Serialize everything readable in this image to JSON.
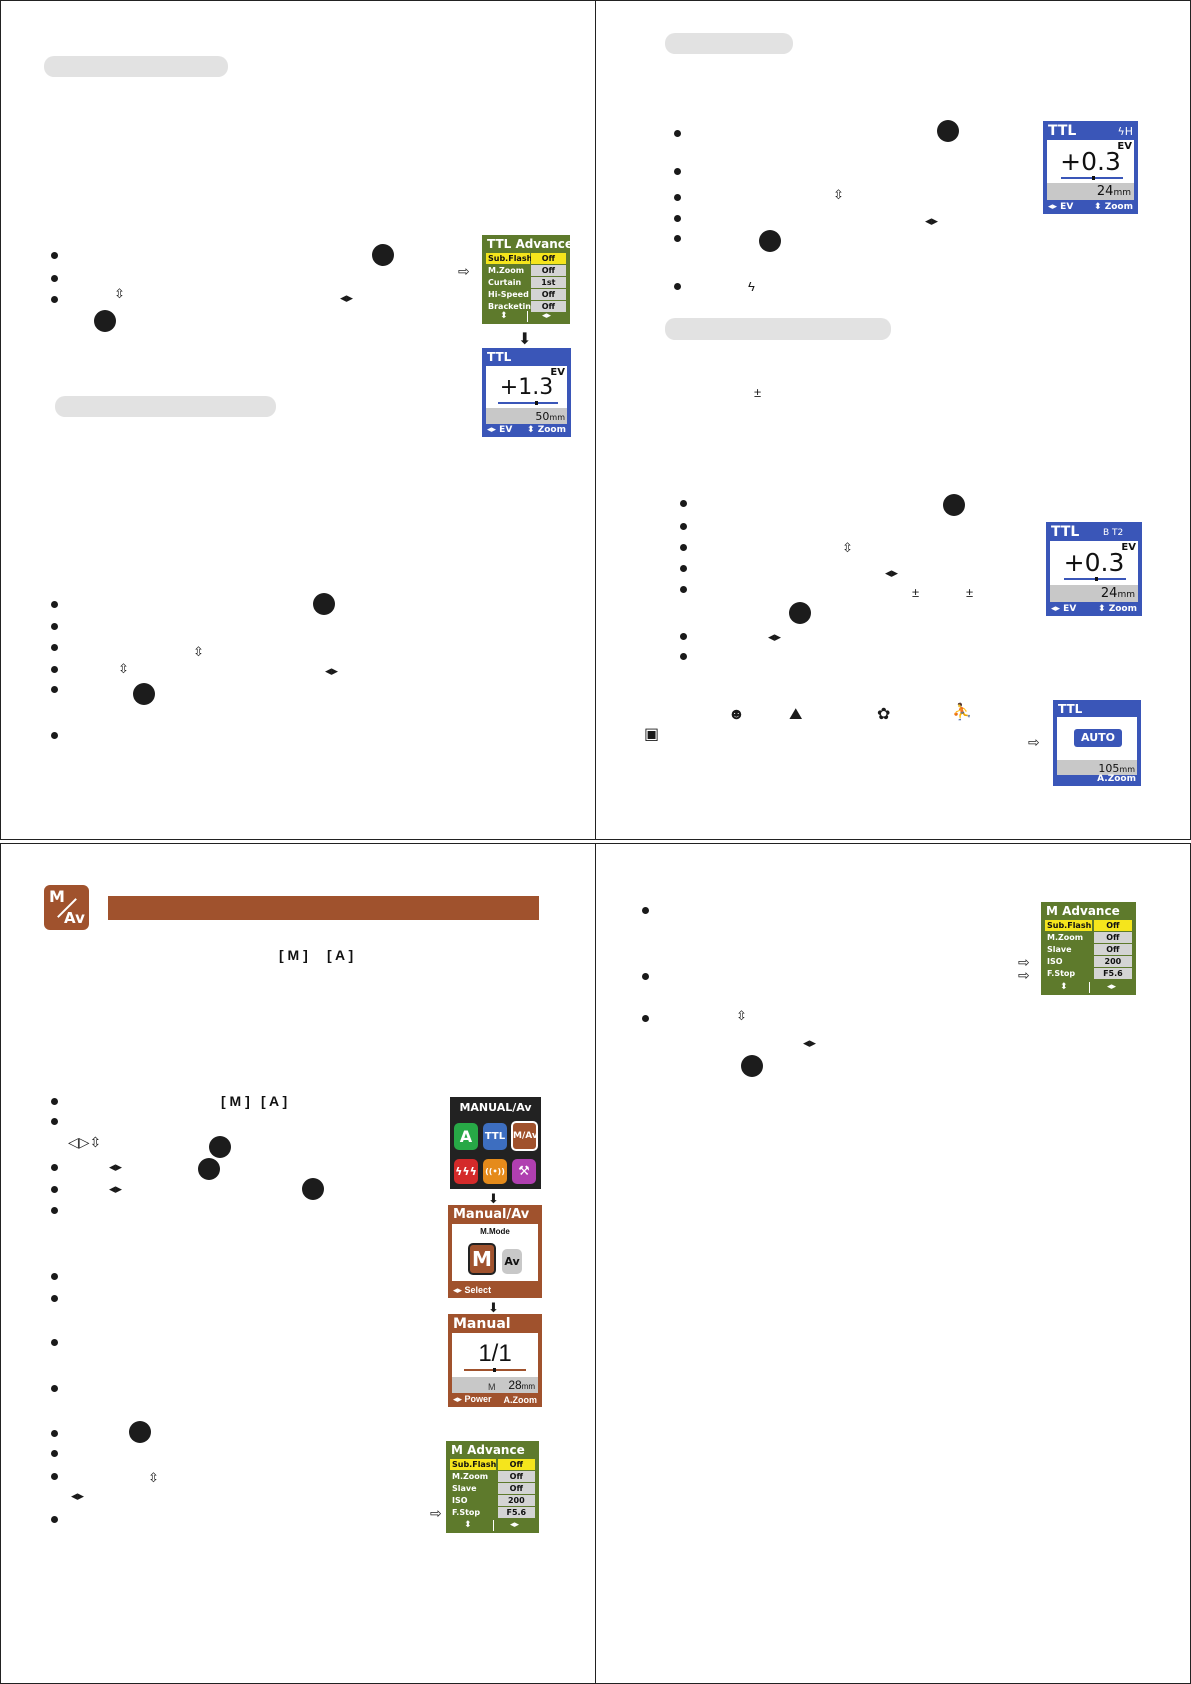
{
  "q1": {
    "menu": {
      "title": "TTL  Advance",
      "rows": [
        {
          "key": "Sub.Flash",
          "value": "Off"
        },
        {
          "key": "M.Zoom",
          "value": "Off"
        },
        {
          "key": "Curtain",
          "value": "1st"
        },
        {
          "key": "Hi-Speed",
          "value": "Off"
        },
        {
          "key": "Bracketing",
          "value": "Off"
        }
      ]
    },
    "lcd": {
      "title": "TTL",
      "ev_label": "EV",
      "value": "+1.3",
      "zoom": "50",
      "unit": "mm",
      "foot_left": "EV",
      "foot_right": "Zoom"
    }
  },
  "q2": {
    "lcd1": {
      "title": "TTL",
      "badge": "H",
      "ev_label": "EV",
      "value": "+0.3",
      "zoom": "24",
      "unit": "mm",
      "foot_left": "EV",
      "foot_right": "Zoom"
    },
    "plusminus": "±",
    "lcd2": {
      "title": "TTL",
      "badge": "B  T2",
      "ev_label": "EV",
      "value": "+0.3",
      "zoom": "24",
      "unit": "mm",
      "foot_left": "EV",
      "foot_right": "Zoom"
    },
    "lcd3": {
      "title": "TTL",
      "auto": "AUTO",
      "zoom": "105",
      "unit": "mm",
      "foot_right": "A.Zoom"
    }
  },
  "q3": {
    "mode_icon": {
      "top": "M",
      "bottom": "Av"
    },
    "bracket_m": "[ M ]",
    "bracket_a": "[ A ]",
    "menu_screen": {
      "title": "MANUAL/Av",
      "tiles": [
        "A",
        "TTL",
        "M/Av",
        "ϟϟϟ",
        "((•))",
        "⚒"
      ]
    },
    "manual_av": {
      "title": "Manual/Av",
      "subtitle": "M.Mode",
      "m": "M",
      "av": "Av",
      "foot": "Select"
    },
    "manual": {
      "title": "Manual",
      "value": "1/1",
      "m": "M",
      "zoom": "28",
      "unit": "mm",
      "foot_left": "Power",
      "foot_right": "A.Zoom"
    },
    "menu": {
      "title": "M       Advance",
      "rows": [
        {
          "key": "Sub.Flash",
          "value": "Off"
        },
        {
          "key": "M.Zoom",
          "value": "Off"
        },
        {
          "key": "Slave",
          "value": "Off"
        },
        {
          "key": "ISO",
          "value": "200"
        },
        {
          "key": "F.Stop",
          "value": "F5.6"
        }
      ]
    }
  },
  "q4": {
    "menu": {
      "title": "M       Advance",
      "rows": [
        {
          "key": "Sub.Flash",
          "value": "Off"
        },
        {
          "key": "M.Zoom",
          "value": "Off"
        },
        {
          "key": "Slave",
          "value": "Off"
        },
        {
          "key": "ISO",
          "value": "200"
        },
        {
          "key": "F.Stop",
          "value": "F5.6"
        }
      ]
    }
  }
}
